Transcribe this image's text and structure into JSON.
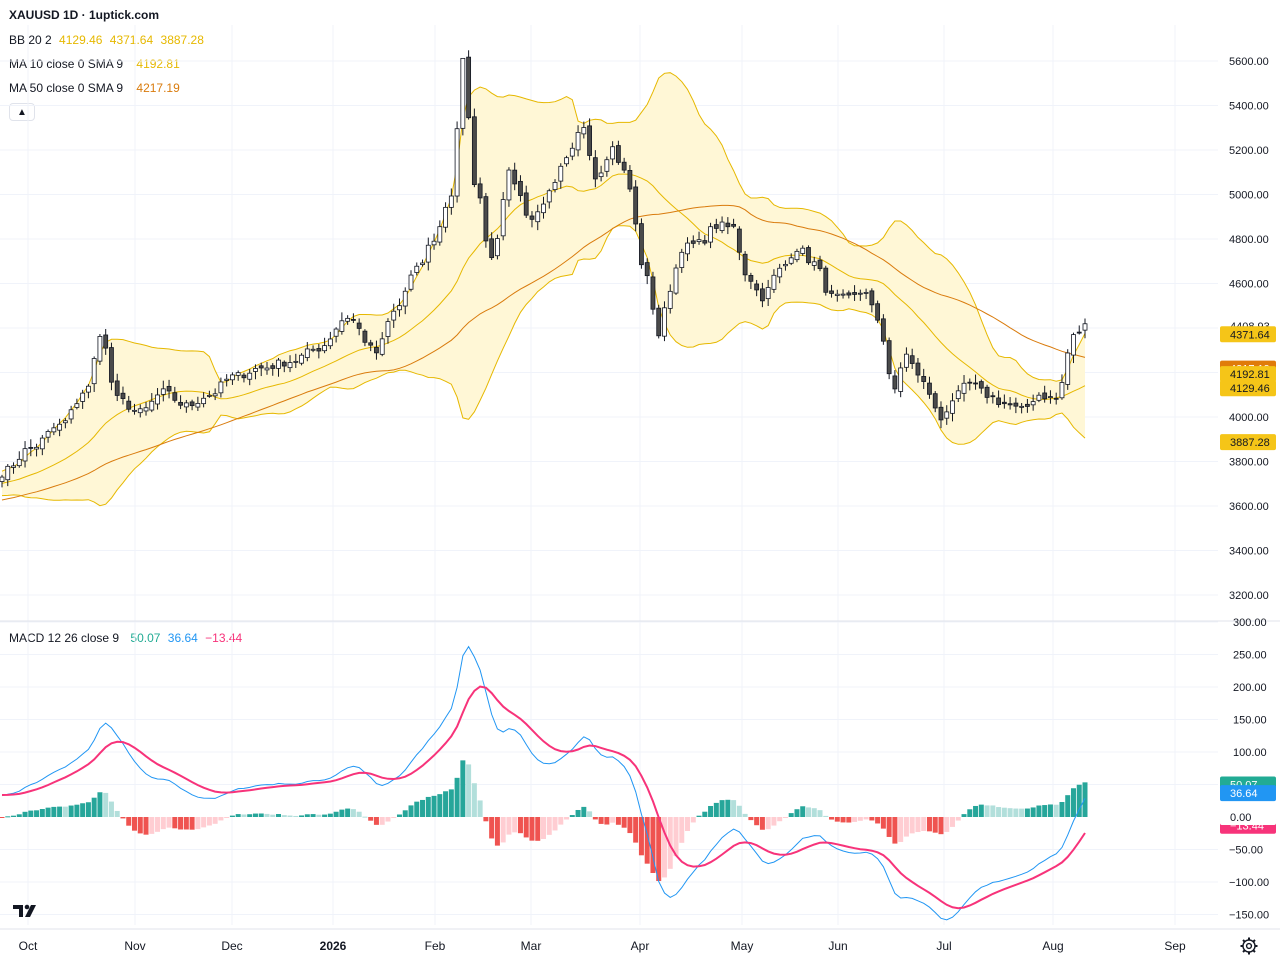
{
  "header": {
    "title": "XAUUSD 1D · 1uptick.com"
  },
  "legends": {
    "bb": {
      "label": "BB 20 2",
      "values": [
        "4129.46",
        "4371.64",
        "3887.28"
      ],
      "color": "#e6b800"
    },
    "ma10": {
      "label": "MA 10 close 0 SMA 9",
      "value": "4192.81",
      "color": "#e6b800"
    },
    "ma50": {
      "label": "MA 50 close 0 SMA 9",
      "value": "4217.19",
      "color": "#d97b0d"
    },
    "macd": {
      "label": "MACD 12 26 close 9",
      "values": [
        "50.07",
        "36.64",
        "−13.44"
      ],
      "colors": [
        "#22ab94",
        "#2196f3",
        "#f7337a"
      ]
    }
  },
  "colors": {
    "candle_up": "#ffffff",
    "candle_down": "#4a4a4a",
    "candle_border": "#131722",
    "bb_fill": "#fff7d6",
    "bb_line": "#e6b800",
    "ma10": "#e6b800",
    "ma50": "#d97b0d",
    "macd_line": "#2196f3",
    "signal_line": "#f7337a",
    "hist_up_strong": "#26a69a",
    "hist_up_weak": "#b2dfdb",
    "hist_down_strong": "#ef5350",
    "hist_down_weak": "#ffcdd2"
  },
  "icons": {
    "logo": "tradingview-logo-icon",
    "settings": "gear-icon",
    "collapse": "chevron-up-icon"
  },
  "chart_data": [
    {
      "type": "candlestick",
      "title": "XAUUSD 1D · 1uptick.com",
      "ylim": [
        3150,
        5700
      ],
      "y_ticks": [
        "5600.00",
        "5400.00",
        "5200.00",
        "5000.00",
        "4800.00",
        "4600.00",
        "4400.00",
        "4200.00",
        "4000.00",
        "3800.00",
        "3600.00",
        "3400.00",
        "3200.00"
      ],
      "x_ticks": [
        "Oct",
        "Nov",
        "Dec",
        "2026",
        "Feb",
        "Mar",
        "Apr",
        "May",
        "Jun",
        "Jul",
        "Aug",
        "Sep"
      ],
      "price_labels": [
        {
          "value": 4408.93,
          "text": "4408.93",
          "bg": "#ffffff",
          "fg": "#131722"
        },
        {
          "value": 4371.64,
          "text": "4371.64",
          "bg": "#f5c518",
          "fg": "#131722"
        },
        {
          "value": 4217.19,
          "text": "4217.19",
          "bg": "#e07b0a",
          "fg": "#ffffff"
        },
        {
          "value": 4192.81,
          "text": "4192.81",
          "bg": "#f5c518",
          "fg": "#131722"
        },
        {
          "value": 4129.46,
          "text": "4129.46",
          "bg": "#f5c518",
          "fg": "#131722"
        },
        {
          "value": 3887.28,
          "text": "3887.28",
          "bg": "#f5c518",
          "fg": "#131722"
        }
      ],
      "close_anchors": [
        [
          0,
          3750
        ],
        [
          5,
          3860
        ],
        [
          10,
          3960
        ],
        [
          15,
          4130
        ],
        [
          17,
          4380
        ],
        [
          20,
          4080
        ],
        [
          24,
          4020
        ],
        [
          28,
          4110
        ],
        [
          32,
          4050
        ],
        [
          36,
          4100
        ],
        [
          40,
          4180
        ],
        [
          45,
          4220
        ],
        [
          50,
          4250
        ],
        [
          55,
          4310
        ],
        [
          60,
          4450
        ],
        [
          65,
          4290
        ],
        [
          68,
          4470
        ],
        [
          72,
          4660
        ],
        [
          75,
          4800
        ],
        [
          78,
          5000
        ],
        [
          80,
          5600
        ],
        [
          82,
          5060
        ],
        [
          85,
          4720
        ],
        [
          88,
          5090
        ],
        [
          92,
          4890
        ],
        [
          95,
          5000
        ],
        [
          98,
          5150
        ],
        [
          101,
          5310
        ],
        [
          103,
          5080
        ],
        [
          106,
          5210
        ],
        [
          108,
          5100
        ],
        [
          112,
          4620
        ],
        [
          114,
          4370
        ],
        [
          116,
          4580
        ],
        [
          118,
          4760
        ],
        [
          121,
          4780
        ],
        [
          124,
          4860
        ],
        [
          127,
          4850
        ],
        [
          129,
          4650
        ],
        [
          132,
          4540
        ],
        [
          135,
          4660
        ],
        [
          138,
          4760
        ],
        [
          141,
          4690
        ],
        [
          144,
          4540
        ],
        [
          147,
          4530
        ],
        [
          150,
          4570
        ],
        [
          152,
          4420
        ],
        [
          155,
          4130
        ],
        [
          157,
          4280
        ],
        [
          160,
          4150
        ],
        [
          163,
          3990
        ],
        [
          165,
          4080
        ],
        [
          168,
          4150
        ],
        [
          171,
          4100
        ],
        [
          174,
          4060
        ],
        [
          177,
          4030
        ],
        [
          180,
          4100
        ],
        [
          183,
          4080
        ],
        [
          186,
          4360
        ],
        [
          188,
          4409
        ]
      ],
      "series_names": [
        "BB 20 2",
        "MA 10 close 0 SMA 9",
        "MA 50 close 0 SMA 9"
      ]
    },
    {
      "type": "macd",
      "title": "MACD 12 26 close 9",
      "ylim": [
        -160,
        305
      ],
      "y_ticks": [
        "300.00",
        "250.00",
        "200.00",
        "150.00",
        "100.00",
        "50.00",
        "−50.00",
        "−100.00",
        "−150.00"
      ],
      "last_labels": [
        {
          "value": 50.07,
          "text": "50.07",
          "bg": "#22ab94"
        },
        {
          "value": 36.64,
          "text": "36.64",
          "bg": "#2196f3"
        },
        {
          "value": -13.44,
          "text": "−13.44",
          "bg": "#f7337a"
        },
        {
          "value": 0,
          "text": "0.00",
          "bg": "#ffffff"
        }
      ]
    }
  ]
}
